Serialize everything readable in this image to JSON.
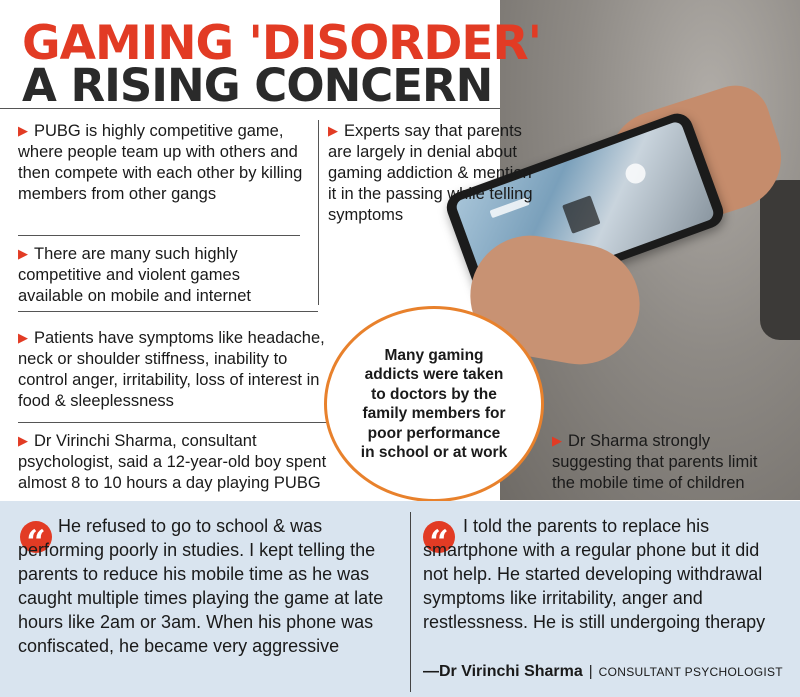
{
  "headline": {
    "line1": "GAMING 'DISORDER'",
    "line2": "A RISING CONCERN"
  },
  "colors": {
    "accent": "#e23b24",
    "circle_border": "#e8812c",
    "quote_bg": "#d9e4ef"
  },
  "bullet_icon": "triangle-arrow-icon",
  "points": {
    "pubg": "PUBG is highly competitive game, where people team up with others and then compete with each other by killing members from other gangs",
    "experts": "Experts say that parents are largely in denial about gaming addiction & mention it in the passing while telling symptoms",
    "violent_games": "There are many such highly competitive and violent games available on mobile and internet",
    "symptoms": "Patients have symptoms like headache, neck or shoulder stiffness, inability to control anger, irritability, loss of interest in food & sleeplessness",
    "sharma_case": "Dr Virinchi Sharma, consultant psychologist, said a 12-year-old boy spent almost 8 to 10 hours a day playing PUBG",
    "limit_time": "Dr Sharma strongly suggesting that parents limit the mobile time of children"
  },
  "callout": "Many gaming addicts were taken to doctors by the family members for poor performance in school or at work",
  "quotes": {
    "left": "He refused to go to school & was performing poorly in studies. I kept telling the parents to reduce his mobile time as he was caught multiple times playing the game at late hours like 2am or 3am. When his phone was confiscated, he became very aggressive",
    "right": "I told the parents to replace his smartphone with a regular phone but it did not help. He started developing withdrawal symptoms like irritability, anger and restlessness. He is still undergoing therapy",
    "quote_icon": "quote-mark-icon",
    "quote_glyph": "“"
  },
  "attribution": {
    "name": "—Dr Virinchi Sharma",
    "separator": "|",
    "role": "CONSULTANT PSYCHOLOGIST"
  }
}
